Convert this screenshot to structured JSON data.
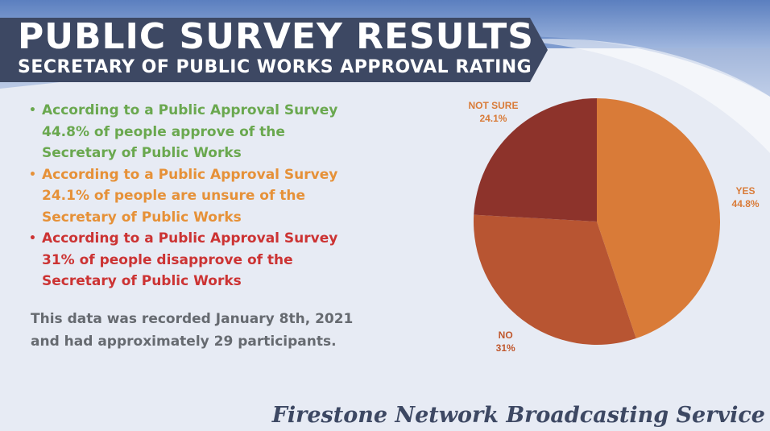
{
  "header": {
    "title": "PUBLIC SURVEY RESULTS",
    "subtitle": "SECRETARY OF PUBLIC WORKS APPROVAL RATING"
  },
  "bullets": [
    {
      "lines": [
        "According to a Public Approval Survey",
        "44.8% of people approve of the",
        "Secretary of Public Works"
      ],
      "color": "#6aa84f"
    },
    {
      "lines": [
        "According to a Public Approval Survey",
        "24.1% of people are unsure of the",
        "Secretary of Public Works"
      ],
      "color": "#e69138"
    },
    {
      "lines": [
        "According to a Public Approval Survey",
        "31% of people disapprove of the",
        "Secretary of Public Works"
      ],
      "color": "#cc3333"
    }
  ],
  "note": {
    "lines": [
      "This data was recorded January 8th, 2021",
      "and had approximately 29 participants."
    ]
  },
  "chart_data": {
    "type": "pie",
    "slices": [
      {
        "label": "YES",
        "value": 44.8,
        "value_label": "44.8%",
        "color": "#d97b38",
        "label_color": "#d97b38"
      },
      {
        "label": "NO",
        "value": 31,
        "value_label": "31%",
        "color": "#b85532",
        "label_color": "#c0582e"
      },
      {
        "label": "NOT SURE",
        "value": 24.1,
        "value_label": "24.1%",
        "color": "#8d332b",
        "label_color": "#d97b38"
      }
    ],
    "start": "12 o'clock",
    "direction": "clockwise"
  },
  "footer": {
    "brand": "Firestone Network Broadcasting Service"
  },
  "colors": {
    "background": "#e7ebf4",
    "banner": "#3d4863",
    "brand_text": "#3d4863",
    "note_text": "#666a70"
  }
}
